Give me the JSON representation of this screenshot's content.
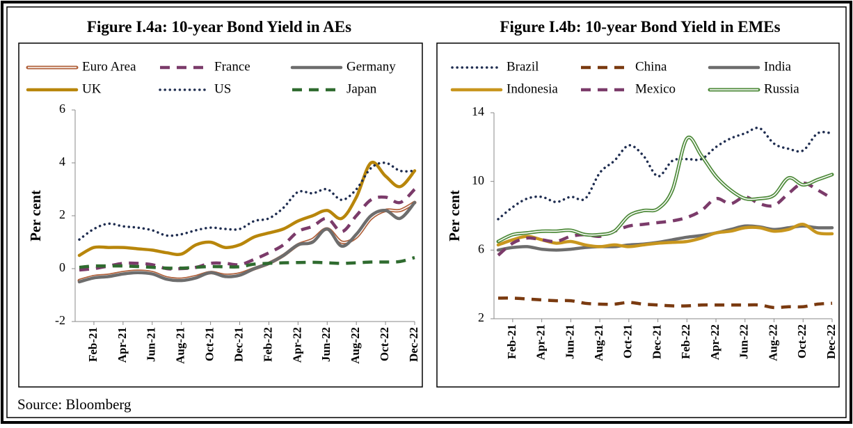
{
  "chart_data": [
    {
      "type": "line",
      "title": "Figure I.4a: 10-year Bond Yield in AEs",
      "ylabel": "Per cent",
      "legend": "top",
      "categories": [
        null,
        "Feb-21",
        null,
        "Apr-21",
        null,
        "Jun-21",
        null,
        "Aug-21",
        null,
        "Oct-21",
        null,
        "Dec-21",
        null,
        "Feb-22",
        null,
        "Apr-22",
        null,
        "Jun-22",
        null,
        "Aug-22",
        null,
        "Oct-22",
        null,
        "Dec-22"
      ],
      "ylim": [
        -2,
        6
      ],
      "yticks": [
        -2,
        0,
        2,
        4,
        6
      ],
      "series": [
        {
          "name": "Euro Area",
          "color": "#b0603a",
          "style": "double",
          "values": [
            -0.45,
            -0.3,
            -0.25,
            -0.15,
            -0.1,
            -0.15,
            -0.35,
            -0.4,
            -0.3,
            -0.15,
            -0.25,
            -0.2,
            0.0,
            0.2,
            0.5,
            0.9,
            1.1,
            1.5,
            1.0,
            1.2,
            1.9,
            2.2,
            2.2,
            2.5
          ]
        },
        {
          "name": "France",
          "color": "#7b3b6a",
          "style": "dashed",
          "values": [
            -0.05,
            0.0,
            0.1,
            0.2,
            0.2,
            0.15,
            0.0,
            0.0,
            0.05,
            0.2,
            0.2,
            0.15,
            0.35,
            0.6,
            0.9,
            1.4,
            1.6,
            1.9,
            1.4,
            2.0,
            2.6,
            2.7,
            2.5,
            3.0
          ]
        },
        {
          "name": "Germany",
          "color": "#6d6d6d",
          "style": "solid",
          "values": [
            -0.5,
            -0.35,
            -0.3,
            -0.2,
            -0.15,
            -0.2,
            -0.4,
            -0.45,
            -0.35,
            -0.15,
            -0.3,
            -0.25,
            0.0,
            0.2,
            0.5,
            0.9,
            1.0,
            1.5,
            0.85,
            1.3,
            2.0,
            2.2,
            1.9,
            2.5
          ]
        },
        {
          "name": "UK",
          "color": "#b8860b",
          "style": "solid",
          "values": [
            0.5,
            0.8,
            0.8,
            0.8,
            0.75,
            0.7,
            0.6,
            0.55,
            0.9,
            1.0,
            0.8,
            0.9,
            1.2,
            1.35,
            1.5,
            1.8,
            2.0,
            2.2,
            1.9,
            2.7,
            4.0,
            3.5,
            3.1,
            3.7
          ]
        },
        {
          "name": "US",
          "color": "#1f2d50",
          "style": "dotted",
          "values": [
            1.1,
            1.5,
            1.7,
            1.6,
            1.55,
            1.45,
            1.25,
            1.3,
            1.45,
            1.55,
            1.5,
            1.5,
            1.8,
            1.9,
            2.3,
            2.9,
            2.85,
            3.0,
            2.6,
            3.0,
            3.8,
            4.0,
            3.7,
            3.7
          ]
        },
        {
          "name": "Japan",
          "color": "#2f6b2f",
          "style": "dashed",
          "values": [
            0.05,
            0.1,
            0.1,
            0.1,
            0.08,
            0.05,
            0.02,
            0.02,
            0.05,
            0.08,
            0.07,
            0.07,
            0.17,
            0.2,
            0.22,
            0.23,
            0.24,
            0.22,
            0.2,
            0.22,
            0.25,
            0.25,
            0.27,
            0.42
          ]
        }
      ]
    },
    {
      "type": "line",
      "title": "Figure I.4b: 10-year Bond Yield in EMEs",
      "ylabel": "Per cent",
      "legend": "top",
      "categories": [
        null,
        "Feb-21",
        null,
        "Apr-21",
        null,
        "Jun-21",
        null,
        "Aug-21",
        null,
        "Oct-21",
        null,
        "Dec-21",
        null,
        "Feb-22",
        null,
        "Apr-22",
        null,
        "Jun-22",
        null,
        "Aug-22",
        null,
        "Oct-22",
        null,
        "Dec-22"
      ],
      "ylim": [
        2,
        14
      ],
      "yticks": [
        2,
        6,
        10,
        14
      ],
      "series": [
        {
          "name": "Brazil",
          "color": "#1f2d50",
          "style": "dotted",
          "values": [
            7.8,
            8.5,
            9.0,
            9.1,
            8.8,
            9.1,
            9.0,
            10.5,
            11.2,
            12.1,
            11.5,
            10.3,
            11.2,
            11.3,
            11.3,
            12.0,
            12.5,
            12.8,
            13.1,
            12.2,
            11.9,
            11.8,
            12.8,
            12.8
          ]
        },
        {
          "name": "China",
          "color": "#7a3a10",
          "style": "dashed",
          "values": [
            3.2,
            3.2,
            3.15,
            3.1,
            3.05,
            3.05,
            2.9,
            2.85,
            2.85,
            2.95,
            2.85,
            2.8,
            2.75,
            2.75,
            2.8,
            2.8,
            2.8,
            2.8,
            2.8,
            2.65,
            2.7,
            2.7,
            2.85,
            2.9
          ]
        },
        {
          "name": "India",
          "color": "#6d6d6d",
          "style": "solid",
          "values": [
            6.0,
            6.15,
            6.2,
            6.05,
            6.0,
            6.05,
            6.15,
            6.2,
            6.2,
            6.3,
            6.35,
            6.45,
            6.6,
            6.75,
            6.85,
            7.0,
            7.2,
            7.4,
            7.35,
            7.2,
            7.3,
            7.4,
            7.3,
            7.3
          ]
        },
        {
          "name": "Indonesia",
          "color": "#c8961e",
          "style": "solid",
          "values": [
            6.3,
            6.6,
            6.8,
            6.6,
            6.4,
            6.5,
            6.3,
            6.2,
            6.3,
            6.2,
            6.3,
            6.4,
            6.45,
            6.5,
            6.7,
            7.0,
            7.1,
            7.3,
            7.3,
            7.1,
            7.2,
            7.5,
            7.0,
            6.95
          ]
        },
        {
          "name": "Mexico",
          "color": "#7b3b6a",
          "style": "dashed",
          "values": [
            5.7,
            6.4,
            6.7,
            6.6,
            6.5,
            6.8,
            6.9,
            6.8,
            7.1,
            7.4,
            7.5,
            7.6,
            7.7,
            7.9,
            8.3,
            9.0,
            8.7,
            9.1,
            8.7,
            8.6,
            9.3,
            9.9,
            9.5,
            9.0
          ]
        },
        {
          "name": "Russia",
          "color": "#4e8a3a",
          "style": "double",
          "values": [
            6.5,
            6.9,
            7.0,
            7.1,
            7.1,
            7.15,
            6.9,
            6.9,
            7.1,
            8.0,
            8.3,
            8.4,
            9.5,
            12.5,
            11.5,
            10.3,
            9.5,
            9.0,
            9.0,
            9.2,
            10.2,
            9.8,
            10.1,
            10.4
          ]
        }
      ]
    }
  ],
  "source": "Source: Bloomberg"
}
